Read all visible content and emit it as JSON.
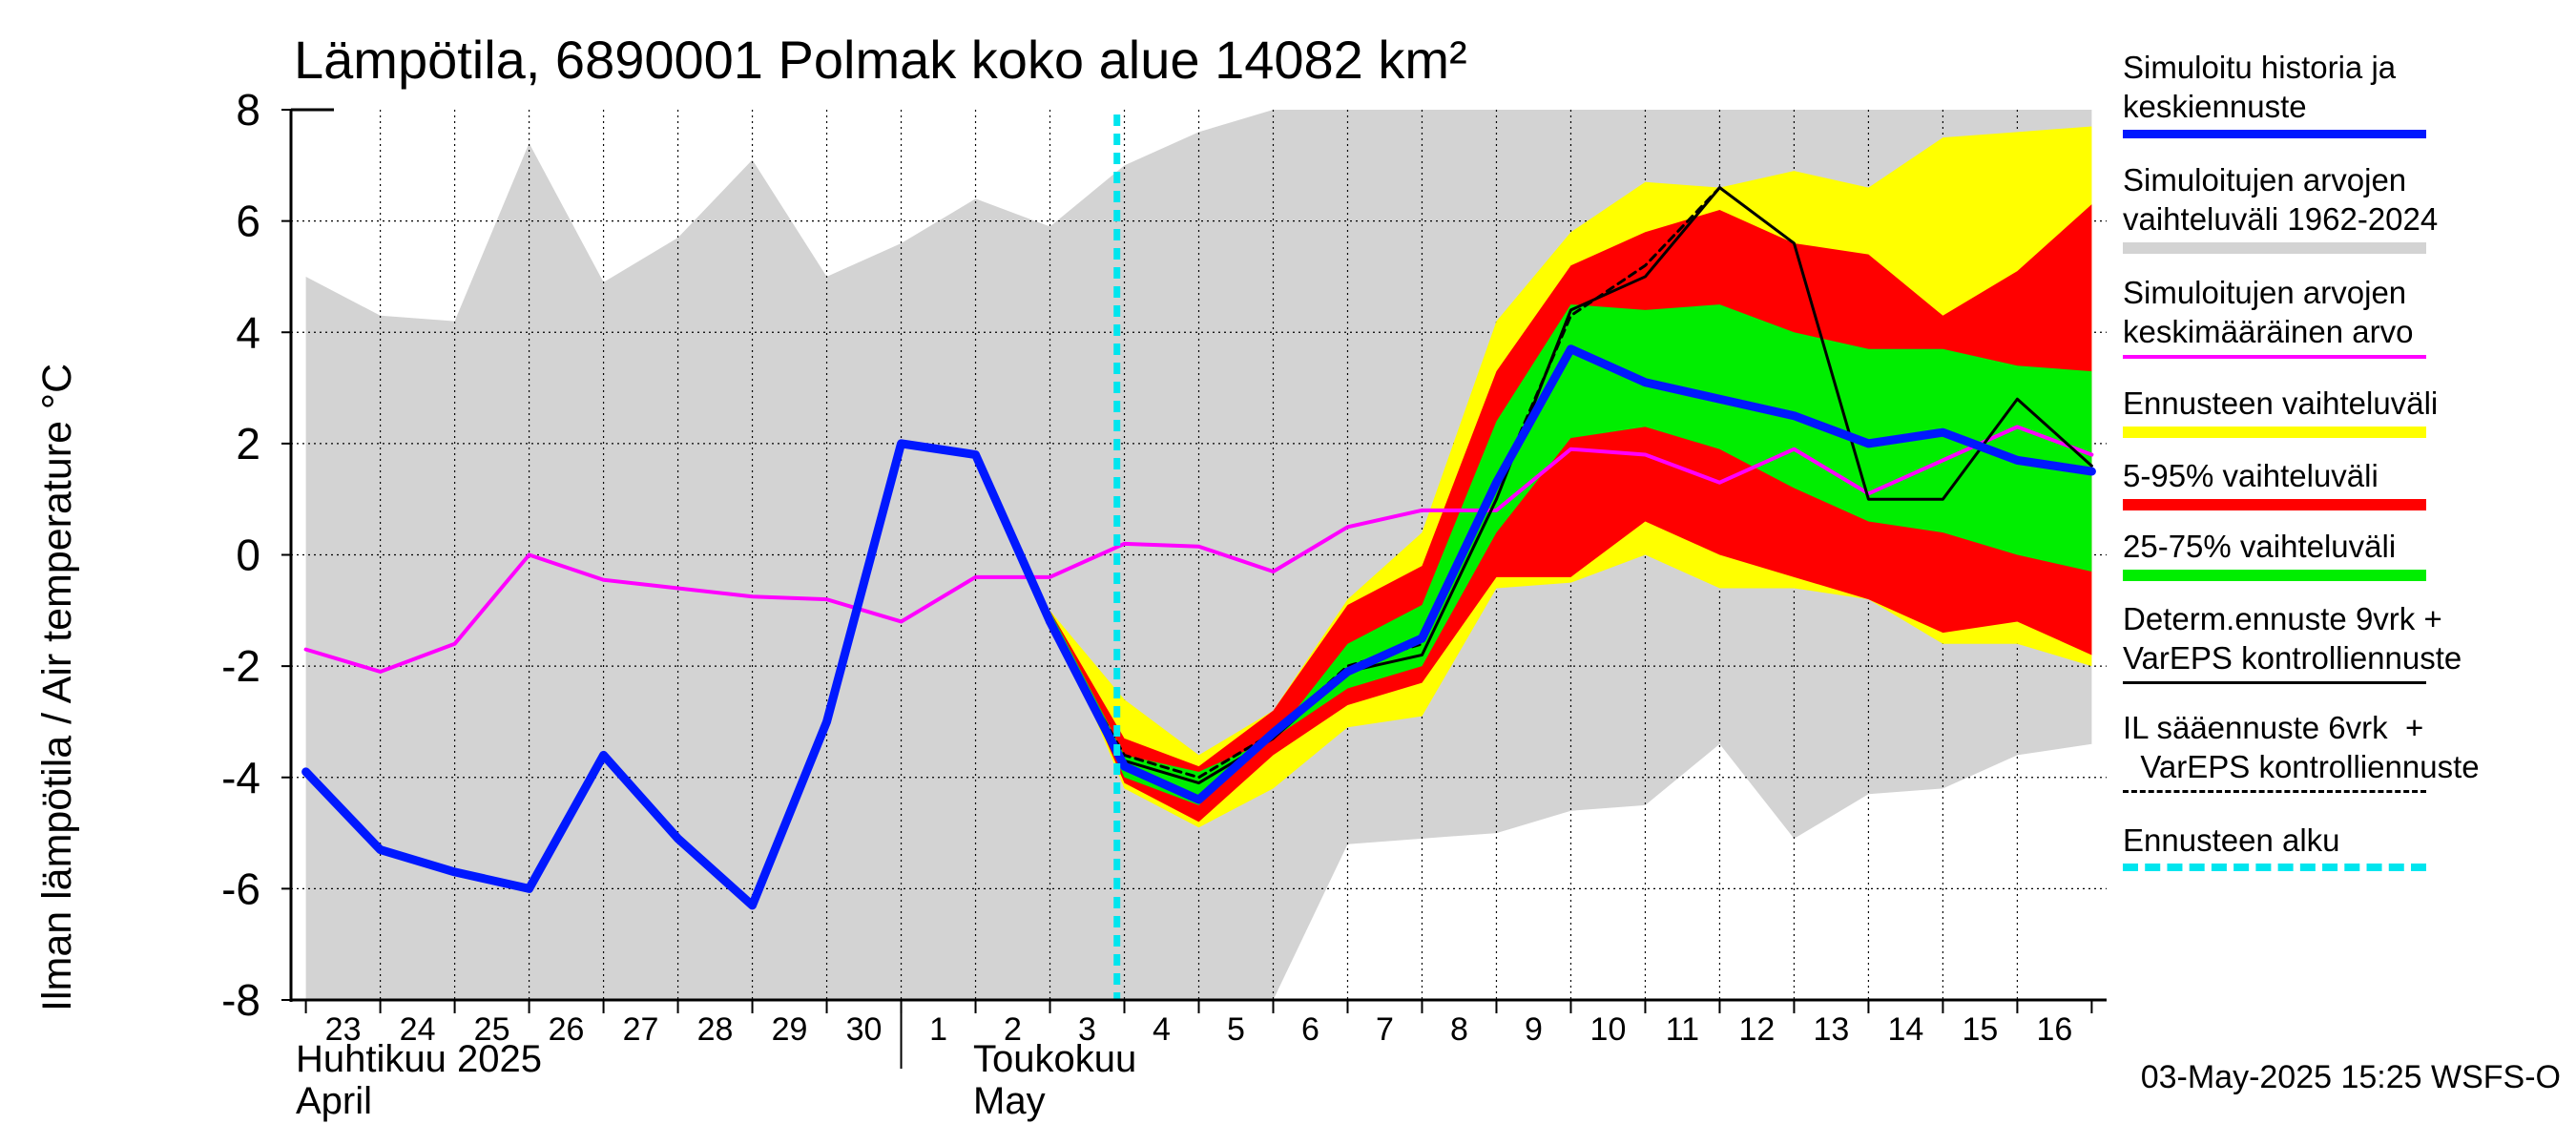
{
  "title": "Lämpötila, 6890001 Polmak koko alue 14082 km²",
  "ylabel": "Ilman lämpötila / Air temperature   °C",
  "months": [
    {
      "line1": "Huhtikuu  2025",
      "line2": "April"
    },
    {
      "line1": "Toukokuu",
      "line2": "May"
    }
  ],
  "timestamp": "03-May-2025 15:25 WSFS-O",
  "legend": [
    {
      "label": "Simuloitu historia ja\nkeskiennuste",
      "color": "#0018ff",
      "style": "solid-thick"
    },
    {
      "label": "Simuloitujen arvojen\nvaihteluväli 1962-2024",
      "color": "#d3d3d3",
      "style": "band"
    },
    {
      "label": "Simuloitujen arvojen\nkeskimääräinen arvo",
      "color": "#ff00ff",
      "style": "solid"
    },
    {
      "label": "Ennusteen vaihteluväli",
      "color": "#ffff00",
      "style": "band"
    },
    {
      "label": "5-95% vaihteluväli",
      "color": "#ff0000",
      "style": "band"
    },
    {
      "label": "25-75% vaihteluväli",
      "color": "#00ee00",
      "style": "band"
    },
    {
      "label": "Determ.ennuste 9vrk +\nVarEPS kontrolliennuste",
      "color": "#000000",
      "style": "solid-thin"
    },
    {
      "label": "IL sääennuste 6vrk  +\n  VarEPS kontrolliennuste",
      "color": "#000000",
      "style": "dashed"
    },
    {
      "label": "Ennusteen alku",
      "color": "#00e5ee",
      "style": "dashed-thick"
    }
  ],
  "chart_data": {
    "type": "line",
    "x_unit": "day",
    "xlim": [
      -0.2,
      24.2
    ],
    "ylim": [
      -8,
      8
    ],
    "yticks": [
      -8,
      -6,
      -4,
      -2,
      0,
      2,
      4,
      6,
      8
    ],
    "x_tick_labels": [
      "23",
      "24",
      "25",
      "26",
      "27",
      "28",
      "29",
      "30",
      "1",
      "2",
      "3",
      "4",
      "5",
      "6",
      "7",
      "8",
      "9",
      "10",
      "11",
      "12",
      "13",
      "14",
      "15",
      "16"
    ],
    "forecast_start": 10.9,
    "month_boundary": 8,
    "x": [
      0,
      1,
      2,
      3,
      4,
      5,
      6,
      7,
      8,
      9,
      10,
      11,
      12,
      13,
      14,
      15,
      16,
      17,
      18,
      19,
      20,
      21,
      22,
      23,
      24
    ],
    "history_range": {
      "upper": [
        5.0,
        4.3,
        4.2,
        7.4,
        4.9,
        5.7,
        7.1,
        5.0,
        5.6,
        6.4,
        5.9,
        7.0,
        7.6,
        8.0,
        8.0,
        8.0,
        8.0,
        8.0,
        8.0,
        8.0,
        8.0,
        8.0,
        8.0,
        8.0,
        8.0
      ],
      "lower": [
        -8,
        -8,
        -8,
        -8,
        -8,
        -8,
        -8,
        -8,
        -8,
        -8,
        -8,
        -8,
        -8,
        -8,
        -5.2,
        -5.1,
        -5.0,
        -4.6,
        -4.5,
        -3.4,
        -5.1,
        -4.3,
        -4.2,
        -3.6,
        -3.4
      ]
    },
    "sim_mean": {
      "x": [
        0,
        1,
        2,
        3,
        4,
        5,
        6,
        7,
        8,
        9,
        10,
        11,
        12,
        13,
        14,
        15,
        16,
        17,
        18,
        19,
        20,
        21,
        22,
        23,
        24
      ],
      "values": [
        -1.7,
        -2.1,
        -1.6,
        0.0,
        -0.45,
        -0.6,
        -0.75,
        -0.8,
        -1.2,
        -0.4,
        -0.4,
        0.2,
        0.15,
        -0.3,
        0.5,
        0.8,
        0.8,
        1.9,
        1.8,
        1.3,
        1.9,
        1.1,
        1.7,
        2.3,
        1.8
      ]
    },
    "history_mean": {
      "x": [
        0,
        1,
        2,
        3,
        4,
        5,
        6,
        7,
        8,
        9,
        10
      ],
      "values": [
        -3.9,
        -5.3,
        -5.7,
        -6.0,
        -3.6,
        -5.1,
        -6.3,
        -3.0,
        2.0,
        1.8,
        -1.2
      ]
    },
    "forecast_x": [
      10,
      11,
      12,
      13,
      14,
      15,
      16,
      17,
      18,
      19,
      20,
      21,
      22,
      23,
      24
    ],
    "forecast_range": {
      "upper": [
        -1.0,
        -2.6,
        -3.6,
        -2.8,
        -0.8,
        0.4,
        4.2,
        5.8,
        6.7,
        6.6,
        6.9,
        6.6,
        7.5,
        7.6,
        7.7
      ],
      "lower": [
        -1.0,
        -4.2,
        -4.9,
        -4.2,
        -3.1,
        -2.9,
        -0.6,
        -0.5,
        0.0,
        -0.6,
        -0.6,
        -0.8,
        -1.6,
        -1.6,
        -2.0
      ]
    },
    "p5_95": {
      "upper": [
        -1.0,
        -3.3,
        -3.8,
        -2.8,
        -0.9,
        -0.2,
        3.3,
        5.2,
        5.8,
        6.2,
        5.6,
        5.4,
        4.3,
        5.1,
        6.3
      ],
      "lower": [
        -1.0,
        -4.1,
        -4.8,
        -3.6,
        -2.7,
        -2.3,
        -0.4,
        -0.4,
        0.6,
        0.0,
        -0.4,
        -0.8,
        -1.4,
        -1.2,
        -1.8
      ]
    },
    "p25_75": {
      "upper": [
        -1.0,
        -3.6,
        -3.9,
        -3.3,
        -1.6,
        -0.9,
        2.4,
        4.5,
        4.4,
        4.5,
        4.0,
        3.7,
        3.7,
        3.4,
        3.3
      ],
      "lower": [
        -1.0,
        -4.0,
        -4.5,
        -3.3,
        -2.4,
        -2.0,
        0.4,
        2.1,
        2.3,
        1.9,
        1.2,
        0.6,
        0.4,
        0.0,
        -0.3
      ]
    },
    "forecast_mean": {
      "values": [
        -1.2,
        -3.8,
        -4.4,
        -3.2,
        -2.1,
        -1.5,
        1.3,
        3.7,
        3.1,
        2.8,
        2.5,
        2.0,
        2.2,
        1.7,
        1.5
      ]
    },
    "deterministic": {
      "x": [
        9,
        10,
        11,
        12,
        13,
        14,
        15,
        16,
        17,
        18,
        19,
        20,
        21,
        22,
        23,
        24
      ],
      "values": [
        1.8,
        -1.3,
        -3.7,
        -4.1,
        -3.3,
        -2.1,
        -1.8,
        1.0,
        4.4,
        5.0,
        6.6,
        5.6,
        1.0,
        1.0,
        2.8,
        1.6
      ]
    },
    "il_forecast": {
      "x": [
        9,
        10,
        11,
        12,
        13,
        14,
        15,
        16,
        17,
        18,
        19
      ],
      "values": [
        1.8,
        -1.3,
        -3.6,
        -4.0,
        -3.2,
        -2.0,
        -1.6,
        1.2,
        4.3,
        5.2,
        6.6
      ]
    }
  }
}
